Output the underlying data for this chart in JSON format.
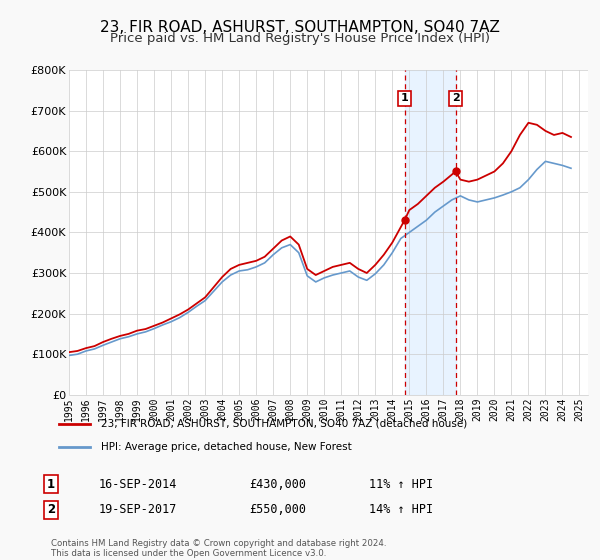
{
  "title": "23, FIR ROAD, ASHURST, SOUTHAMPTON, SO40 7AZ",
  "subtitle": "Price paid vs. HM Land Registry's House Price Index (HPI)",
  "title_fontsize": 11,
  "subtitle_fontsize": 9.5,
  "background_color": "#f9f9f9",
  "plot_bg_color": "#ffffff",
  "legend1_label": "23, FIR ROAD, ASHURST, SOUTHAMPTON, SO40 7AZ (detached house)",
  "legend2_label": "HPI: Average price, detached house, New Forest",
  "sale1_date_num": 2014.72,
  "sale1_label": "16-SEP-2014",
  "sale1_price": "£430,000",
  "sale1_pct": "11% ↑ HPI",
  "sale1_value": 430000,
  "sale2_date_num": 2017.72,
  "sale2_label": "19-SEP-2017",
  "sale2_price": "£550,000",
  "sale2_pct": "14% ↑ HPI",
  "sale2_value": 550000,
  "red_line_color": "#cc0000",
  "blue_line_color": "#6699cc",
  "shade_color": "#ddeeff",
  "vline_color": "#cc0000",
  "footer_text": "Contains HM Land Registry data © Crown copyright and database right 2024.\nThis data is licensed under the Open Government Licence v3.0.",
  "ylabel_ticks": [
    "£0",
    "£100K",
    "£200K",
    "£300K",
    "£400K",
    "£500K",
    "£600K",
    "£700K",
    "£800K"
  ],
  "ytick_vals": [
    0,
    100000,
    200000,
    300000,
    400000,
    500000,
    600000,
    700000,
    800000
  ],
  "xmin": 1995,
  "xmax": 2025.5,
  "ymin": 0,
  "ymax": 800000,
  "red_x": [
    1995.0,
    1995.5,
    1996.0,
    1996.5,
    1997.0,
    1997.5,
    1998.0,
    1998.5,
    1999.0,
    1999.5,
    2000.0,
    2000.5,
    2001.0,
    2001.5,
    2002.0,
    2002.5,
    2003.0,
    2003.5,
    2004.0,
    2004.5,
    2005.0,
    2005.5,
    2006.0,
    2006.5,
    2007.0,
    2007.5,
    2008.0,
    2008.5,
    2009.0,
    2009.5,
    2010.0,
    2010.5,
    2011.0,
    2011.5,
    2012.0,
    2012.5,
    2013.0,
    2013.5,
    2014.0,
    2014.72,
    2015.0,
    2015.5,
    2016.0,
    2016.5,
    2017.0,
    2017.72,
    2018.0,
    2018.5,
    2019.0,
    2019.5,
    2020.0,
    2020.5,
    2021.0,
    2021.5,
    2022.0,
    2022.5,
    2023.0,
    2023.5,
    2024.0,
    2024.5
  ],
  "red_y": [
    105000,
    108000,
    115000,
    120000,
    130000,
    138000,
    145000,
    150000,
    158000,
    162000,
    170000,
    178000,
    188000,
    198000,
    210000,
    225000,
    240000,
    265000,
    290000,
    310000,
    320000,
    325000,
    330000,
    340000,
    360000,
    380000,
    390000,
    370000,
    310000,
    295000,
    305000,
    315000,
    320000,
    325000,
    310000,
    300000,
    320000,
    345000,
    375000,
    430000,
    455000,
    470000,
    490000,
    510000,
    525000,
    550000,
    530000,
    525000,
    530000,
    540000,
    550000,
    570000,
    600000,
    640000,
    670000,
    665000,
    650000,
    640000,
    645000,
    635000
  ],
  "blue_x": [
    1995.0,
    1995.5,
    1996.0,
    1996.5,
    1997.0,
    1997.5,
    1998.0,
    1998.5,
    1999.0,
    1999.5,
    2000.0,
    2000.5,
    2001.0,
    2001.5,
    2002.0,
    2002.5,
    2003.0,
    2003.5,
    2004.0,
    2004.5,
    2005.0,
    2005.5,
    2006.0,
    2006.5,
    2007.0,
    2007.5,
    2008.0,
    2008.5,
    2009.0,
    2009.5,
    2010.0,
    2010.5,
    2011.0,
    2011.5,
    2012.0,
    2012.5,
    2013.0,
    2013.5,
    2014.0,
    2014.5,
    2015.0,
    2015.5,
    2016.0,
    2016.5,
    2017.0,
    2017.5,
    2018.0,
    2018.5,
    2019.0,
    2019.5,
    2020.0,
    2020.5,
    2021.0,
    2021.5,
    2022.0,
    2022.5,
    2023.0,
    2023.5,
    2024.0,
    2024.5
  ],
  "blue_y": [
    97000,
    100000,
    108000,
    113000,
    122000,
    130000,
    138000,
    143000,
    150000,
    155000,
    163000,
    172000,
    180000,
    190000,
    203000,
    218000,
    232000,
    255000,
    278000,
    295000,
    305000,
    308000,
    315000,
    325000,
    345000,
    362000,
    370000,
    350000,
    293000,
    278000,
    288000,
    295000,
    300000,
    305000,
    290000,
    282000,
    298000,
    320000,
    350000,
    385000,
    400000,
    415000,
    430000,
    450000,
    465000,
    480000,
    490000,
    480000,
    475000,
    480000,
    485000,
    492000,
    500000,
    510000,
    530000,
    555000,
    575000,
    570000,
    565000,
    558000
  ]
}
